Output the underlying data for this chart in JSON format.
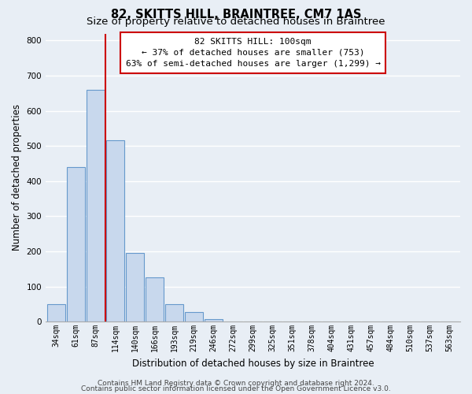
{
  "title": "82, SKITTS HILL, BRAINTREE, CM7 1AS",
  "subtitle": "Size of property relative to detached houses in Braintree",
  "xlabel": "Distribution of detached houses by size in Braintree",
  "ylabel": "Number of detached properties",
  "bar_labels": [
    "34sqm",
    "61sqm",
    "87sqm",
    "114sqm",
    "140sqm",
    "166sqm",
    "193sqm",
    "219sqm",
    "246sqm",
    "272sqm",
    "299sqm",
    "325sqm",
    "351sqm",
    "378sqm",
    "404sqm",
    "431sqm",
    "457sqm",
    "484sqm",
    "510sqm",
    "537sqm",
    "563sqm"
  ],
  "bar_values": [
    50,
    440,
    660,
    515,
    195,
    127,
    50,
    27,
    8,
    0,
    0,
    0,
    0,
    0,
    0,
    0,
    0,
    0,
    0,
    0,
    0
  ],
  "bar_color": "#c8d8ed",
  "bar_edgecolor": "#6699cc",
  "vline_x_index": 2.5,
  "vline_color": "#cc0000",
  "ylim": [
    0,
    820
  ],
  "yticks": [
    0,
    100,
    200,
    300,
    400,
    500,
    600,
    700,
    800
  ],
  "annotation_line1": "82 SKITTS HILL: 100sqm",
  "annotation_line2": "← 37% of detached houses are smaller (753)",
  "annotation_line3": "63% of semi-detached houses are larger (1,299) →",
  "annotation_box_color": "#ffffff",
  "annotation_box_edgecolor": "#cc0000",
  "footer_line1": "Contains HM Land Registry data © Crown copyright and database right 2024.",
  "footer_line2": "Contains public sector information licensed under the Open Government Licence v3.0.",
  "background_color": "#e8eef5",
  "plot_bg_color": "#e8eef5",
  "grid_color": "#ffffff",
  "title_fontsize": 10.5,
  "subtitle_fontsize": 9.5,
  "ylabel_fontsize": 8.5,
  "xlabel_fontsize": 8.5,
  "tick_fontsize": 7,
  "annotation_fontsize": 8,
  "footer_fontsize": 6.5
}
